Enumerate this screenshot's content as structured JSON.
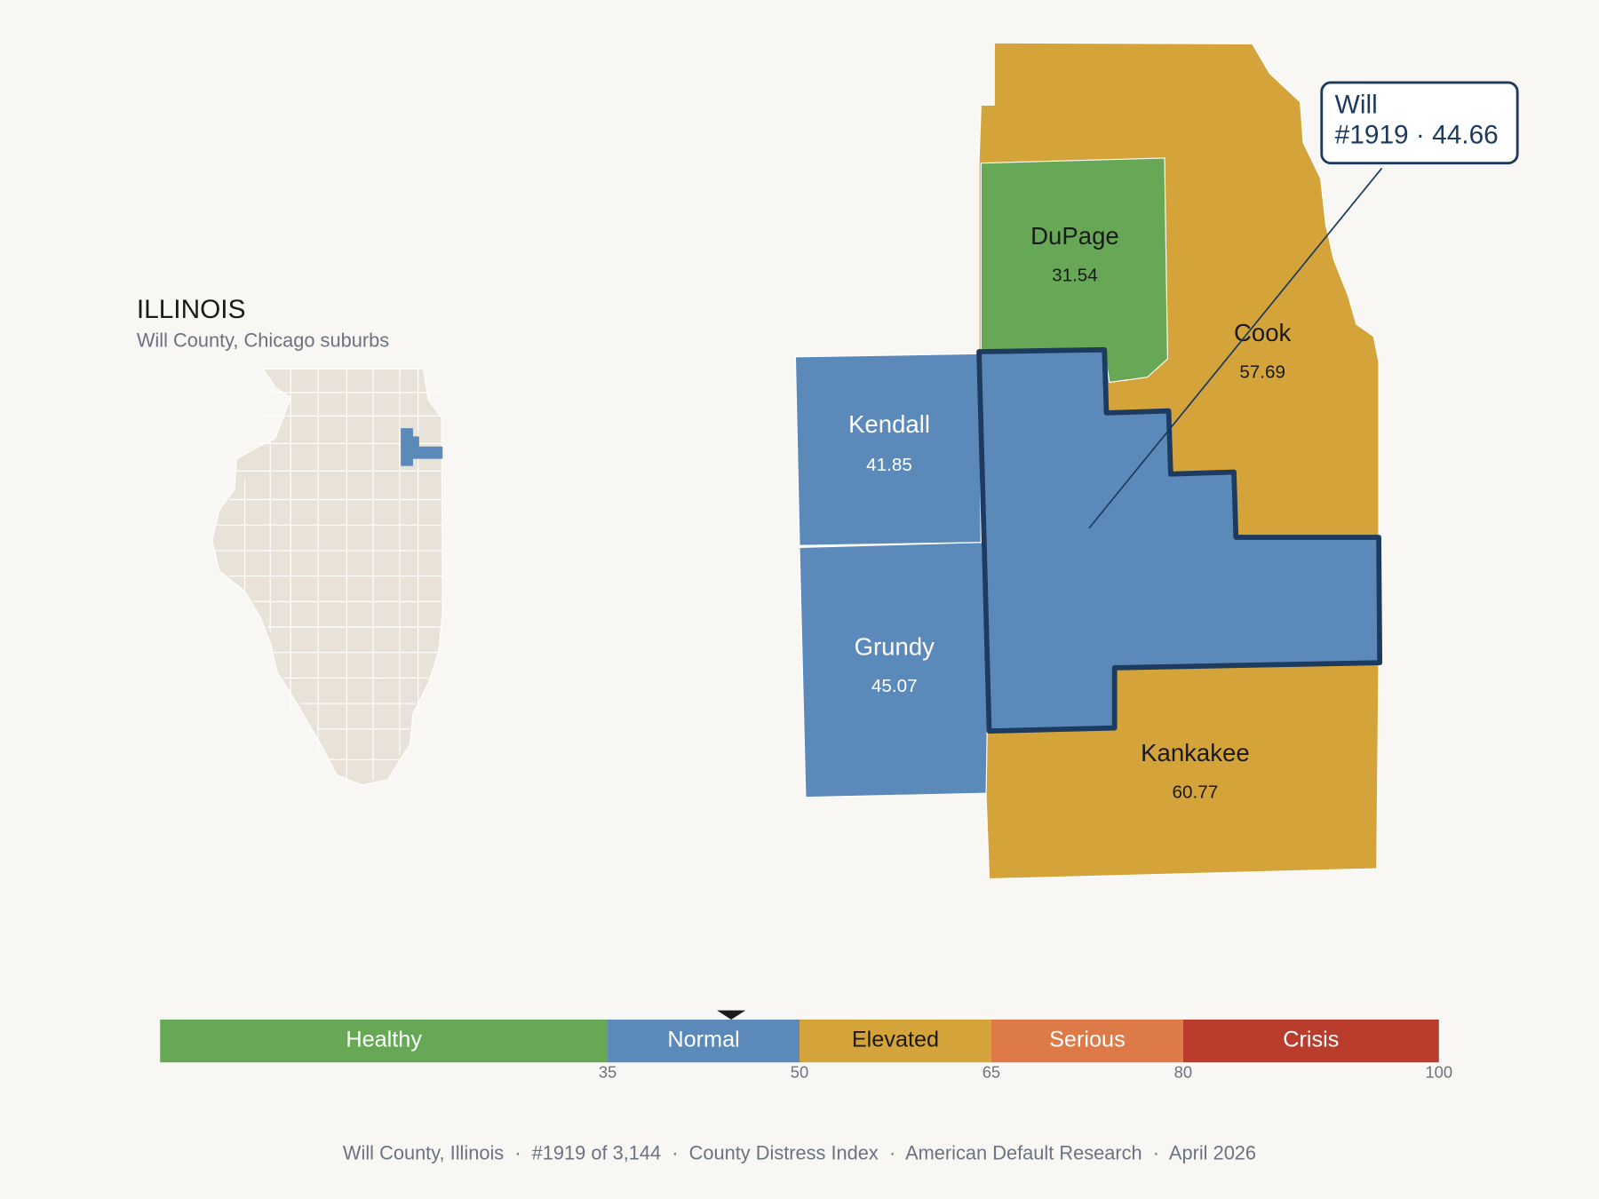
{
  "inset": {
    "title": "ILLINOIS",
    "subtitle": "Will County, Chicago suburbs"
  },
  "counties": [
    {
      "name": "DuPage",
      "value": 31.54
    },
    {
      "name": "Cook",
      "value": 57.69
    },
    {
      "name": "Kendall",
      "value": 41.85
    },
    {
      "name": "Grundy",
      "value": 45.07
    },
    {
      "name": "Kankakee",
      "value": 60.77
    },
    {
      "name": "Will",
      "value": 44.66
    }
  ],
  "callout": {
    "title": "Will",
    "detail": "#1919 · 44.66"
  },
  "scale": {
    "min": 0,
    "max": 100,
    "ticks": [
      35,
      50,
      65,
      80,
      100
    ],
    "bands": [
      {
        "label": "Healthy",
        "to": 35,
        "color": "#67a857",
        "text_color": "#ffffff",
        "map_text_color": "#1a1a1a"
      },
      {
        "label": "Normal",
        "to": 50,
        "color": "#5b8aba",
        "text_color": "#ffffff",
        "map_text_color": "#ffffff"
      },
      {
        "label": "Elevated",
        "to": 65,
        "color": "#d4a43a",
        "text_color": "#1a1a1a",
        "map_text_color": "#1a1a1a"
      },
      {
        "label": "Serious",
        "to": 80,
        "color": "#dd7a48",
        "text_color": "#ffffff",
        "map_text_color": "#ffffff"
      },
      {
        "label": "Crisis",
        "to": 100,
        "color": "#b93c2c",
        "text_color": "#ffffff",
        "map_text_color": "#ffffff"
      }
    ]
  },
  "footer": "Will County, Illinois  ·  #1919 of 3,144  ·  County Distress Index  ·  American Default Research  ·  April 2026"
}
